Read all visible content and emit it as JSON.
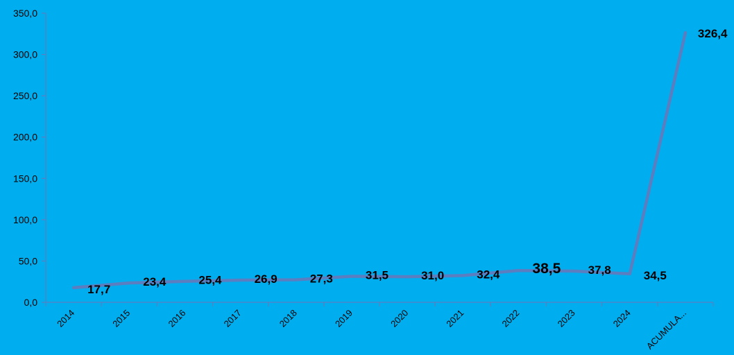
{
  "chart_data": {
    "type": "line",
    "categories": [
      "2014",
      "2015",
      "2016",
      "2017",
      "2018",
      "2019",
      "2020",
      "2021",
      "2022",
      "2023",
      "2024",
      "ACUMULA..."
    ],
    "values": [
      17.7,
      23.4,
      25.4,
      26.9,
      27.3,
      31.5,
      31.0,
      32.4,
      38.5,
      37.8,
      34.5,
      326.4
    ],
    "data_labels": [
      "17,7",
      "23,4",
      "25,4",
      "26,9",
      "27,3",
      "31,5",
      "31,0",
      "32,4",
      "38,5",
      "37,8",
      "34,5",
      "326,4"
    ],
    "y_ticks": [
      "0,0",
      "50,0",
      "100,0",
      "150,0",
      "200,0",
      "250,0",
      "300,0",
      "350,0"
    ],
    "ylim": [
      0,
      350
    ],
    "title": "",
    "xlabel": "",
    "ylabel": "",
    "grid": false,
    "legend": "none",
    "colors": {
      "background": "#00AEEF",
      "line": "#5B7EC0",
      "axis": "#5B7EC0",
      "text": "#000000"
    }
  }
}
